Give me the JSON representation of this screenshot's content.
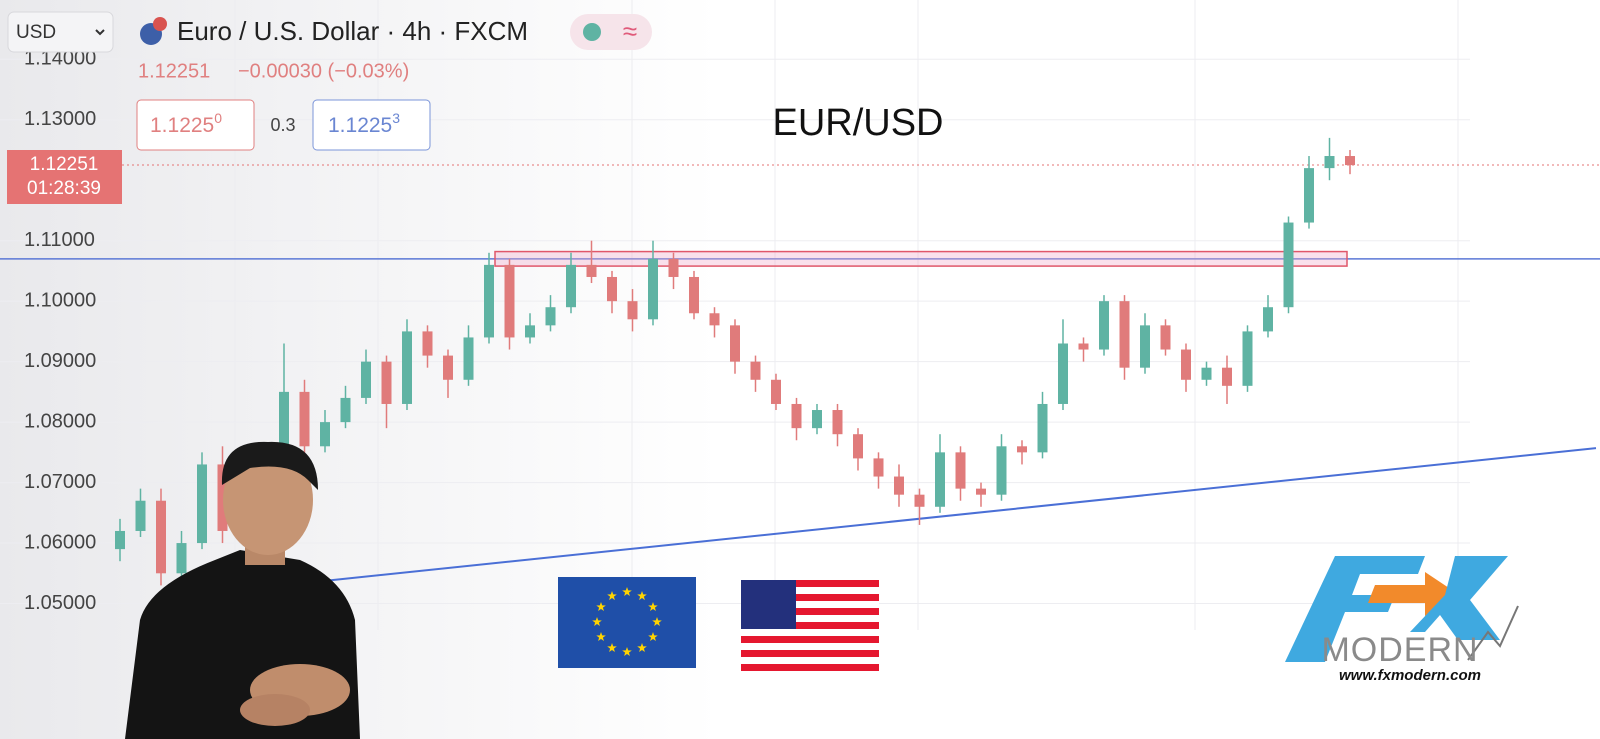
{
  "toolbar": {
    "currency": "USD",
    "symbol": "Euro / U.S. Dollar · 4h · FXCM"
  },
  "quote": {
    "change": "−0.00030 (−0.03%)",
    "bid": "1.1225",
    "bid_digit": "0",
    "spread": "0.3",
    "ask": "1.1225",
    "ask_digit": "3"
  },
  "price_label": {
    "countdown": "01:28:39"
  },
  "chart_data": {
    "type": "candlestick",
    "title": "EUR/USD",
    "last_price": 1.12251,
    "ylim": [
      1.0276,
      1.1498
    ],
    "yticks": [
      {
        "value": 1.14,
        "label": "1.14000"
      },
      {
        "value": 1.13,
        "label": "1.13000"
      },
      {
        "value": 1.11,
        "label": "1.11000"
      },
      {
        "value": 1.1,
        "label": "1.10000"
      },
      {
        "value": 1.09,
        "label": "1.09000"
      },
      {
        "value": 1.08,
        "label": "1.08000"
      },
      {
        "value": 1.07,
        "label": "1.07000"
      },
      {
        "value": 1.06,
        "label": "1.06000"
      },
      {
        "value": 1.05,
        "label": "1.05000"
      }
    ],
    "grid": true,
    "up_color": "#5fb3a3",
    "down_color": "#e07b7b",
    "level": 1.107,
    "level_color": "#5b78d6",
    "zone": [
      1.1058,
      1.1082
    ],
    "zone_color": "#e0576a",
    "trendline": {
      "x": [
        9,
        72
      ],
      "values": [
        1.0534,
        1.0757
      ],
      "color": "#4a6fd6"
    },
    "open": [
      1.059,
      1.062,
      1.067,
      1.055,
      1.06,
      1.073,
      1.062,
      1.07,
      1.064,
      1.085,
      1.076,
      1.08,
      1.084,
      1.09,
      1.083,
      1.095,
      1.091,
      1.087,
      1.094,
      1.106,
      1.094,
      1.096,
      1.099,
      1.106,
      1.104,
      1.1,
      1.097,
      1.107,
      1.104,
      1.098,
      1.096,
      1.09,
      1.087,
      1.083,
      1.079,
      1.082,
      1.078,
      1.074,
      1.071,
      1.068,
      1.066,
      1.075,
      1.069,
      1.068,
      1.076,
      1.075,
      1.083,
      1.093,
      1.092,
      1.1,
      1.089,
      1.096,
      1.092,
      1.087,
      1.089,
      1.086,
      1.095,
      1.099,
      1.113,
      1.122,
      1.124
    ],
    "high": [
      1.064,
      1.069,
      1.069,
      1.062,
      1.075,
      1.076,
      1.072,
      1.071,
      1.093,
      1.087,
      1.082,
      1.086,
      1.092,
      1.091,
      1.097,
      1.096,
      1.092,
      1.096,
      1.108,
      1.107,
      1.098,
      1.101,
      1.108,
      1.11,
      1.105,
      1.102,
      1.11,
      1.108,
      1.105,
      1.099,
      1.097,
      1.091,
      1.088,
      1.084,
      1.083,
      1.083,
      1.079,
      1.075,
      1.073,
      1.069,
      1.078,
      1.076,
      1.07,
      1.078,
      1.077,
      1.085,
      1.097,
      1.094,
      1.101,
      1.101,
      1.098,
      1.097,
      1.093,
      1.09,
      1.091,
      1.096,
      1.101,
      1.114,
      1.124,
      1.127,
      1.125
    ],
    "low": [
      1.057,
      1.061,
      1.053,
      1.054,
      1.059,
      1.06,
      1.061,
      1.062,
      1.063,
      1.074,
      1.075,
      1.079,
      1.083,
      1.079,
      1.082,
      1.089,
      1.084,
      1.086,
      1.093,
      1.092,
      1.093,
      1.095,
      1.098,
      1.103,
      1.098,
      1.095,
      1.096,
      1.102,
      1.097,
      1.094,
      1.088,
      1.085,
      1.082,
      1.077,
      1.078,
      1.076,
      1.072,
      1.069,
      1.066,
      1.063,
      1.065,
      1.067,
      1.066,
      1.067,
      1.073,
      1.074,
      1.082,
      1.09,
      1.091,
      1.087,
      1.088,
      1.091,
      1.085,
      1.086,
      1.083,
      1.085,
      1.094,
      1.098,
      1.112,
      1.12,
      1.121
    ],
    "close": [
      1.062,
      1.067,
      1.055,
      1.06,
      1.073,
      1.062,
      1.07,
      1.064,
      1.085,
      1.076,
      1.08,
      1.084,
      1.09,
      1.083,
      1.095,
      1.091,
      1.087,
      1.094,
      1.106,
      1.094,
      1.096,
      1.099,
      1.106,
      1.104,
      1.1,
      1.097,
      1.107,
      1.104,
      1.098,
      1.096,
      1.09,
      1.087,
      1.083,
      1.079,
      1.082,
      1.078,
      1.074,
      1.071,
      1.068,
      1.066,
      1.075,
      1.069,
      1.068,
      1.076,
      1.075,
      1.083,
      1.093,
      1.092,
      1.1,
      1.089,
      1.096,
      1.092,
      1.087,
      1.089,
      1.086,
      1.095,
      1.099,
      1.113,
      1.122,
      1.124,
      1.1225
    ]
  },
  "logo": {
    "brand": "MODERN",
    "url": "www.fxmodern.com"
  }
}
